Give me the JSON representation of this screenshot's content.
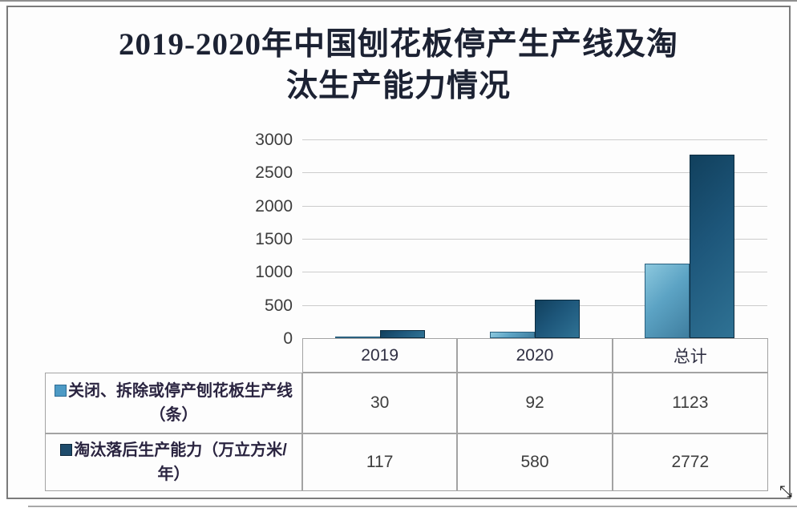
{
  "title": {
    "line1": "2019-2020年中国刨花板停产生产线及淘",
    "line2": "汰生产能力情况"
  },
  "chart_data": {
    "type": "bar",
    "title": "2019-2020年中国刨花板停产生产线及淘汰生产能力情况",
    "categories": [
      "2019",
      "2020",
      "总计"
    ],
    "series": [
      {
        "name": "关闭、拆除或停产刨花板生产线（条）",
        "values": [
          30,
          92,
          1123
        ]
      },
      {
        "name": "淘汰落后生产能力（万立方米/年）",
        "values": [
          117,
          580,
          2772
        ]
      }
    ],
    "xlabel": "",
    "ylabel": "",
    "ylim": [
      0,
      3000
    ],
    "yticks": [
      0,
      500,
      1000,
      1500,
      2000,
      2500,
      3000
    ],
    "grid": true,
    "legend_position": "bottom-table"
  },
  "colors": {
    "series1_fill": "#5ca3c4",
    "series1_border": "#2a607f",
    "series2_fill": "#1d567a",
    "series2_border": "#0b2c40",
    "gridline": "#cccccc",
    "table_border": "#a3a3a3",
    "frame_border": "#7b7b7b",
    "title_text": "#1c2233"
  },
  "artifacts": {
    "cursor_glyph": "⤡"
  }
}
